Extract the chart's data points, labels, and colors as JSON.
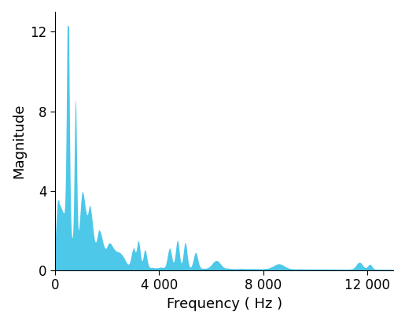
{
  "title": "",
  "xlabel": "Frequency ( Hz )",
  "ylabel": "Magnitude",
  "xlim": [
    0,
    13000
  ],
  "ylim": [
    0,
    13
  ],
  "xticks": [
    0,
    4000,
    8000,
    12000
  ],
  "xtick_labels": [
    "0",
    "4 000",
    "8 000",
    "12 000"
  ],
  "yticks": [
    0,
    4,
    8,
    12
  ],
  "fill_color": "#4DC8E8",
  "bg_color": "#ffffff",
  "xlabel_fontsize": 13,
  "ylabel_fontsize": 13,
  "tick_fontsize": 12
}
